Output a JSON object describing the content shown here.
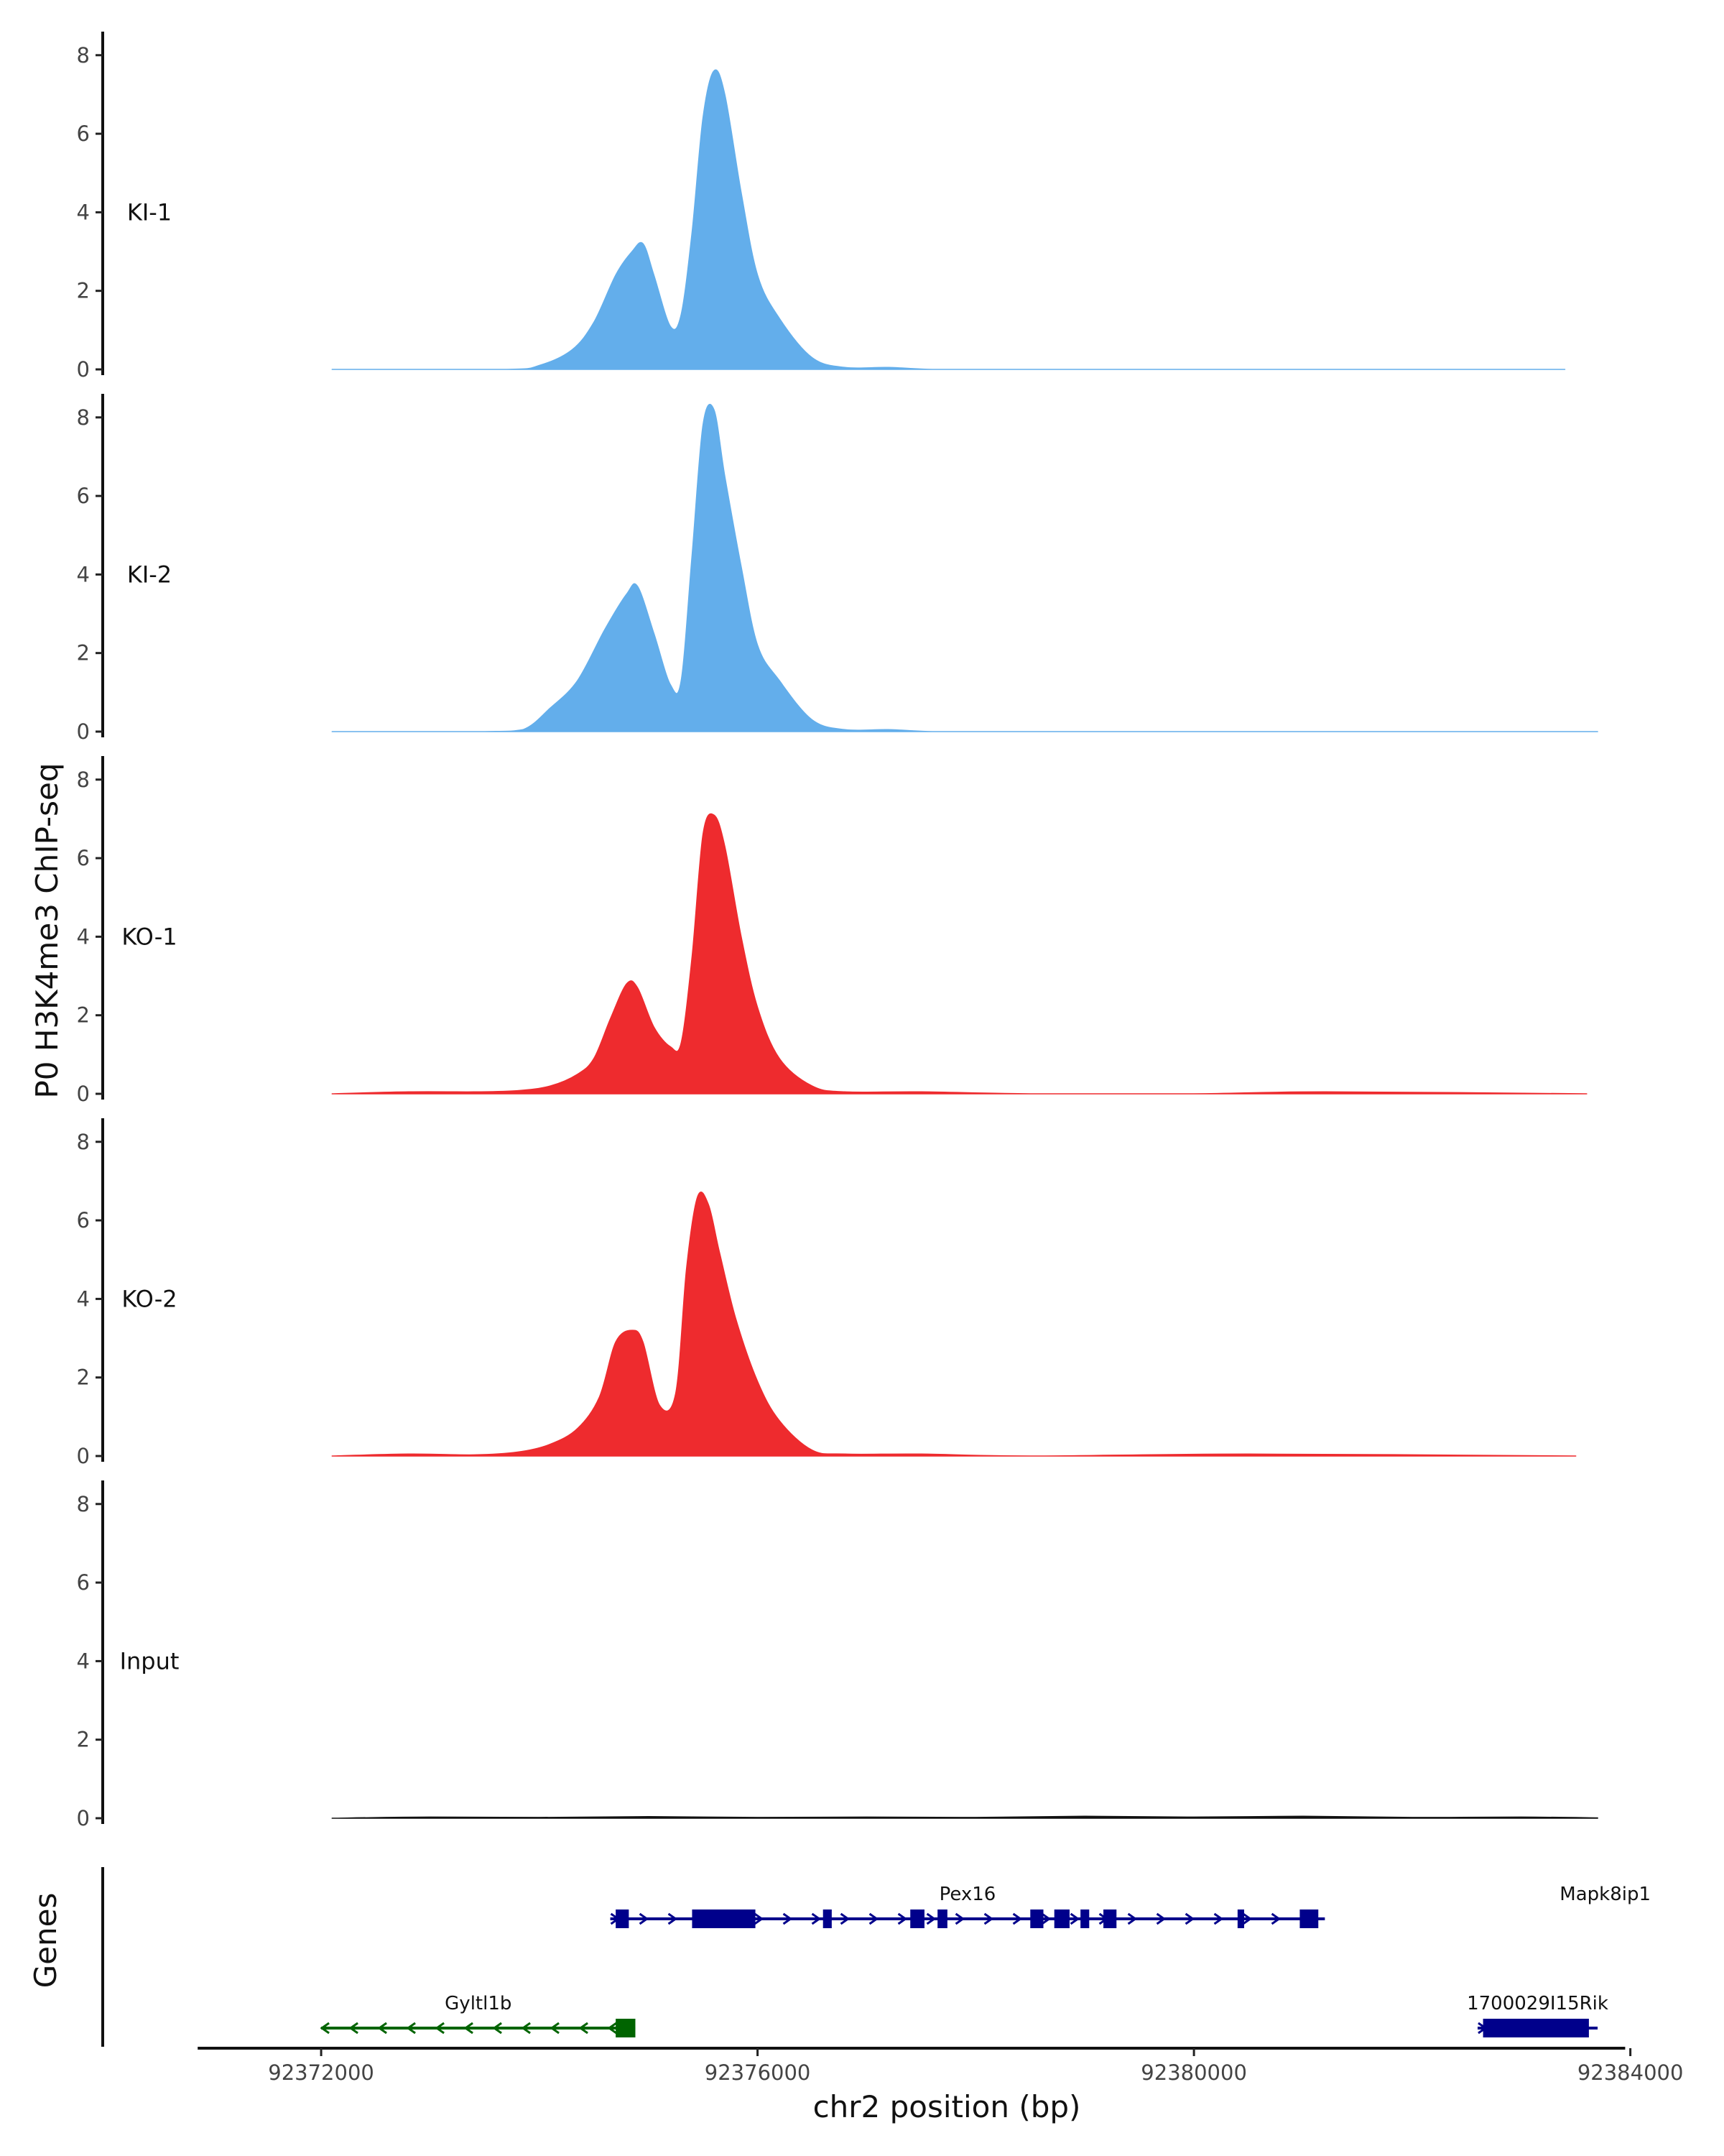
{
  "chart_data": {
    "type": "area",
    "ylabel": "P0 H3K4me3 ChIP-seq",
    "xlabel": "chr2 position (bp)",
    "xlim": [
      92370900,
      92384200
    ],
    "x_ticks": [
      92372000,
      92376000,
      92380000,
      92384000
    ],
    "x_tick_labels": [
      "92372000",
      "92376000",
      "92380000",
      "92384000"
    ],
    "ylim": [
      0,
      8.6
    ],
    "y_ticks": [
      0,
      2,
      4,
      6,
      8
    ],
    "y_tick_labels": [
      "0",
      "2",
      "4",
      "6",
      "8"
    ],
    "tracks": [
      {
        "name": "KI-1",
        "color": "#63aeeb",
        "x": [
          92372100,
          92372400,
          92373700,
          92374000,
          92374300,
          92374500,
          92374700,
          92374850,
          92374950,
          92375050,
          92375200,
          92375300,
          92375400,
          92375500,
          92375600,
          92375700,
          92375850,
          92376000,
          92376200,
          92376500,
          92376800,
          92377200,
          92377600,
          92378200,
          92379000,
          92380500,
          92383400
        ],
        "values": [
          0,
          0,
          0,
          0.1,
          0.5,
          1.2,
          2.4,
          3.0,
          3.2,
          2.4,
          1.1,
          1.4,
          3.5,
          6.4,
          7.6,
          7.0,
          4.5,
          2.4,
          1.3,
          0.3,
          0.05,
          0.05,
          0,
          0,
          0,
          0,
          0
        ]
      },
      {
        "name": "KI-2",
        "color": "#63aeeb",
        "x": [
          92372100,
          92372400,
          92373500,
          92373850,
          92374100,
          92374350,
          92374600,
          92374800,
          92374900,
          92375050,
          92375200,
          92375300,
          92375400,
          92375500,
          92375600,
          92375700,
          92375850,
          92376000,
          92376200,
          92376500,
          92376800,
          92377200,
          92377600,
          92378200,
          92379000,
          92380500,
          92383700
        ],
        "values": [
          0,
          0,
          0,
          0.05,
          0.6,
          1.3,
          2.6,
          3.5,
          3.7,
          2.5,
          1.2,
          1.3,
          4.5,
          7.8,
          8.2,
          6.5,
          4.2,
          2.2,
          1.3,
          0.3,
          0.05,
          0.05,
          0,
          0,
          0,
          0,
          0
        ]
      },
      {
        "name": "KO-1",
        "color": "#ee2b2e",
        "x": [
          92372100,
          92372800,
          92373400,
          92373800,
          92374100,
          92374350,
          92374500,
          92374650,
          92374800,
          92374900,
          92375050,
          92375200,
          92375300,
          92375400,
          92375500,
          92375600,
          92375700,
          92375850,
          92376000,
          92376200,
          92376500,
          92376800,
          92377500,
          92378500,
          92380000,
          92381200,
          92383600
        ],
        "values": [
          0,
          0.05,
          0.05,
          0.08,
          0.2,
          0.5,
          0.9,
          1.9,
          2.8,
          2.7,
          1.7,
          1.2,
          1.3,
          3.5,
          6.6,
          7.1,
          6.3,
          4.0,
          2.2,
          0.9,
          0.2,
          0.05,
          0.05,
          0,
          0,
          0.05,
          0
        ]
      },
      {
        "name": "KO-2",
        "color": "#ee2b2e",
        "x": [
          92372100,
          92372800,
          92373400,
          92373800,
          92374100,
          92374350,
          92374550,
          92374700,
          92374850,
          92374950,
          92375100,
          92375250,
          92375350,
          92375450,
          92375550,
          92375650,
          92375800,
          92376000,
          92376200,
          92376500,
          92376800,
          92377500,
          92378500,
          92380500,
          92383500
        ],
        "values": [
          0,
          0.05,
          0.03,
          0.1,
          0.3,
          0.7,
          1.5,
          2.9,
          3.2,
          2.9,
          1.3,
          1.6,
          4.8,
          6.6,
          6.4,
          5.2,
          3.5,
          1.9,
          0.9,
          0.15,
          0.05,
          0.05,
          0,
          0.05,
          0
        ]
      },
      {
        "name": "Input",
        "color": "#111111",
        "x": [
          92372100,
          92373000,
          92374000,
          92375000,
          92376000,
          92377000,
          92378000,
          92379000,
          92380000,
          92381000,
          92382000,
          92383000,
          92383700
        ],
        "values": [
          0,
          0.03,
          0.02,
          0.04,
          0.02,
          0.03,
          0.02,
          0.05,
          0.03,
          0.05,
          0.02,
          0.03,
          0.01
        ]
      }
    ],
    "gene_panel": {
      "title": "Genes",
      "genes": [
        {
          "name": "Pex16",
          "strand": "+",
          "row": 1,
          "color": "#00008b",
          "start": 92374650,
          "end": 92381200,
          "exons": [
            [
              92374700,
              92374820
            ],
            [
              92375400,
              92375980
            ],
            [
              92376600,
              92376680
            ],
            [
              92377400,
              92377530
            ],
            [
              92377650,
              92377740
            ],
            [
              92378500,
              92378620
            ],
            [
              92378720,
              92378860
            ],
            [
              92378960,
              92379040
            ],
            [
              92379170,
              92379290
            ],
            [
              92380400,
              92380460
            ],
            [
              92380970,
              92381140
            ]
          ]
        },
        {
          "name": "Mapk8ip1",
          "strand": "-",
          "row": 1,
          "color": "#006400",
          "start": 92383750,
          "end": 92383800,
          "exons": []
        },
        {
          "name": "Gyltl1b",
          "strand": "-",
          "row": 2,
          "color": "#006400",
          "start": 92372000,
          "end": 92374880,
          "exons": [
            [
              92374700,
              92374880
            ]
          ]
        },
        {
          "name": "1700029I15Rik",
          "strand": "+",
          "row": 2,
          "color": "#00008b",
          "start": 92382600,
          "end": 92383700,
          "exons": [
            [
              92382650,
              92383620
            ]
          ]
        }
      ]
    }
  }
}
